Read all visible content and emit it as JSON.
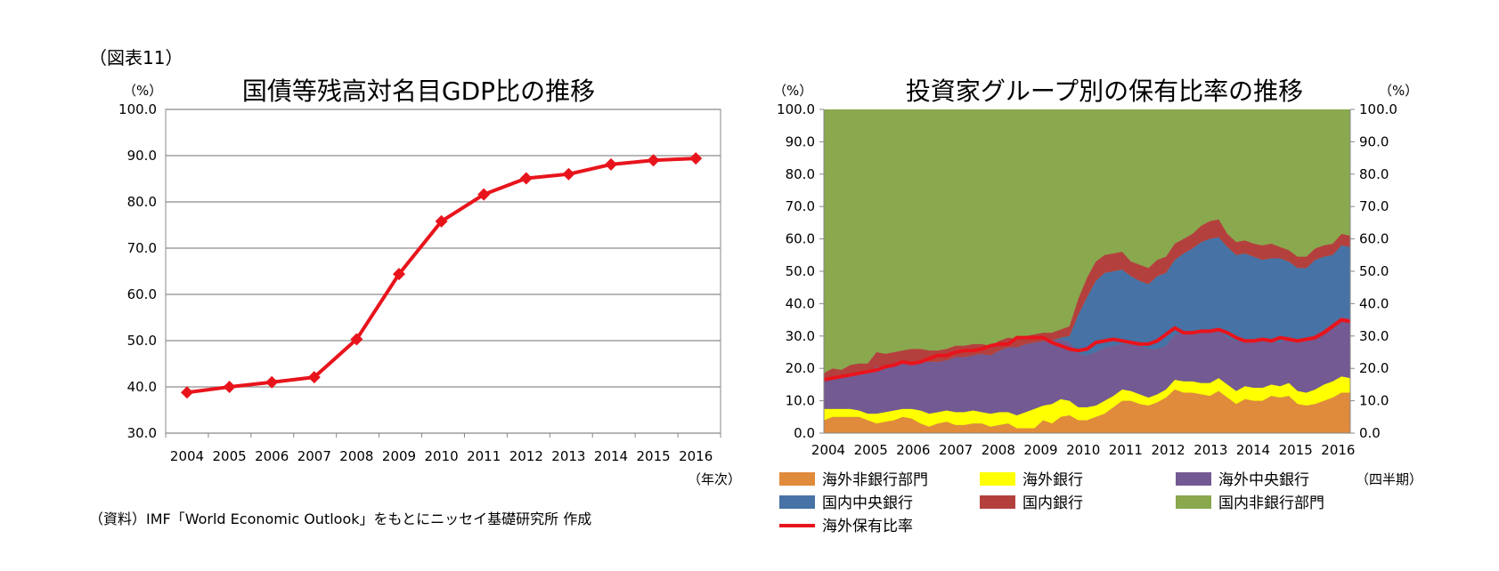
{
  "figure": {
    "label": "（図表11）",
    "source": "（資料）IMF「World Economic Outlook」をもとにニッセイ基礎研究所 作成"
  },
  "chart_data": [
    {
      "type": "line",
      "title": "国債等残高対名目GDP比の推移",
      "ylabel": "（%）",
      "xlabel": "（年次）",
      "ylim": [
        30,
        100
      ],
      "yticks": [
        "30.0",
        "40.0",
        "50.0",
        "60.0",
        "70.0",
        "80.0",
        "90.0",
        "100.0"
      ],
      "grid": true,
      "categories": [
        "2004",
        "2005",
        "2006",
        "2007",
        "2008",
        "2009",
        "2010",
        "2011",
        "2012",
        "2013",
        "2014",
        "2015",
        "2016"
      ],
      "values": [
        38.8,
        40.0,
        41.0,
        42.1,
        50.3,
        64.4,
        75.8,
        81.6,
        85.1,
        86.0,
        88.1,
        89.0,
        89.4
      ],
      "color": "#e8141c"
    },
    {
      "type": "area",
      "title": "投資家グループ別の保有比率の推移",
      "ylabel_left": "（%）",
      "ylabel_right": "（%）",
      "xlabel": "（四半期）",
      "ylim": [
        0,
        100
      ],
      "yticks": [
        "0.0",
        "10.0",
        "20.0",
        "30.0",
        "40.0",
        "50.0",
        "60.0",
        "70.0",
        "80.0",
        "90.0",
        "100.0"
      ],
      "x_labels": [
        "2004",
        "2005",
        "2006",
        "2007",
        "2008",
        "2009",
        "2010",
        "2011",
        "2012",
        "2013",
        "2014",
        "2015",
        "2016"
      ],
      "legend_position": "bottom",
      "stacked": true,
      "series": [
        {
          "name": "海外非銀行部門",
          "color": "#e08a3c",
          "values": [
            4,
            5,
            5,
            5,
            5,
            4,
            3,
            3.5,
            4,
            5,
            4.5,
            3,
            2,
            3,
            3.5,
            2.5,
            2.5,
            3,
            3,
            2,
            2.5,
            3,
            1.5,
            1.5,
            1.5,
            4,
            3,
            5,
            5.5,
            4,
            4,
            5,
            6,
            8,
            10,
            10,
            9,
            8.5,
            9.5,
            11,
            13.5,
            12.5,
            12.5,
            12,
            11.5,
            13,
            11,
            9,
            10.5,
            10,
            10,
            11.5,
            11,
            11.5,
            9,
            8.5,
            9,
            10,
            11,
            12.5,
            12.5
          ]
        },
        {
          "name": "海外銀行",
          "color": "#ffff00",
          "values": [
            3.5,
            2.5,
            2.5,
            2.5,
            2,
            2,
            3,
            3,
            3,
            2.5,
            3,
            4,
            4,
            3.5,
            3.5,
            4,
            4,
            4,
            3.5,
            4,
            4,
            3.5,
            4,
            5,
            6,
            4.5,
            6,
            5.5,
            4.5,
            4,
            4,
            3.5,
            4,
            3.5,
            3.5,
            3,
            3,
            2.5,
            2.5,
            2.5,
            3,
            3.5,
            3.5,
            3.5,
            4,
            4,
            4,
            4,
            4,
            4,
            4,
            3.5,
            3.5,
            4,
            4,
            4,
            4.5,
            5,
            5,
            5,
            4.5
          ]
        },
        {
          "name": "海外中央銀行",
          "color": "#735a92",
          "values": [
            8.5,
            10,
            10,
            10.5,
            11.5,
            12.5,
            14.5,
            14,
            14.5,
            14.5,
            14.5,
            15,
            16,
            15.5,
            15.5,
            17,
            17,
            17,
            18,
            18,
            19,
            20,
            21,
            21,
            20.5,
            20,
            19.5,
            18.5,
            18,
            16.5,
            16,
            16.5,
            16.5,
            15.5,
            14,
            14.5,
            15,
            15,
            14,
            13.5,
            14,
            15,
            15,
            15.5,
            16,
            15,
            14.5,
            15.5,
            14.5,
            14.5,
            14.5,
            13.5,
            13.5,
            14.5,
            15.5,
            16,
            17,
            17,
            18,
            18.5,
            18.5
          ]
        },
        {
          "name": "国内中央銀行",
          "color": "#4672a6",
          "values": [
            0,
            0,
            0,
            0,
            0,
            0,
            0,
            0,
            0,
            0,
            0,
            0,
            0,
            0,
            0,
            0,
            0,
            0,
            0,
            0,
            0,
            0,
            0,
            0,
            0,
            0,
            0,
            0.5,
            2,
            12,
            18,
            22,
            23,
            23,
            23,
            21,
            20,
            20,
            22.5,
            22.5,
            23,
            24.5,
            26,
            28,
            28.5,
            28.5,
            28,
            26.5,
            26.5,
            26,
            25,
            25.5,
            26,
            23,
            22.5,
            22.5,
            23,
            22.5,
            21,
            22,
            22
          ]
        },
        {
          "name": "国内銀行",
          "color": "#b4403e",
          "values": [
            2.5,
            2.5,
            2,
            3,
            3,
            3,
            4.5,
            4,
            3.5,
            3.5,
            4,
            4,
            3.5,
            3.5,
            3.5,
            3.5,
            3.5,
            3.5,
            3,
            3,
            3,
            3,
            2.5,
            2.5,
            2.5,
            2.5,
            2.5,
            2.5,
            3,
            5,
            6,
            6,
            5.5,
            5.5,
            5.5,
            4.5,
            5,
            5,
            5,
            5,
            5,
            4.5,
            4.5,
            5,
            5.5,
            5.5,
            4,
            4,
            4,
            4,
            4.5,
            4.5,
            3.5,
            3.5,
            3.5,
            3.5,
            3.5,
            3.5,
            3.5,
            3.5,
            3.5
          ]
        },
        {
          "name": "国内非銀行部門",
          "color": "#8aa84e",
          "values": "remainder to 100%"
        },
        {
          "name": "海外保有比率",
          "color": "#e8141c",
          "type": "line",
          "values": [
            16.5,
            17,
            17.5,
            18,
            18.5,
            19,
            19.5,
            20.5,
            21,
            22,
            21.5,
            22,
            23,
            24,
            24,
            25,
            25.5,
            25.5,
            26,
            27,
            27.5,
            27.5,
            29.5,
            29.5,
            29.5,
            29.5,
            28,
            27,
            26,
            25.5,
            26,
            28,
            28.5,
            29,
            28.5,
            28,
            27.5,
            27.5,
            28.5,
            30.5,
            32.5,
            31,
            31,
            31.5,
            31.5,
            32,
            31,
            29.5,
            28.5,
            28.5,
            29,
            28.5,
            29.5,
            29,
            28.5,
            29,
            29.5,
            31,
            33,
            35,
            34.5
          ]
        }
      ]
    }
  ]
}
